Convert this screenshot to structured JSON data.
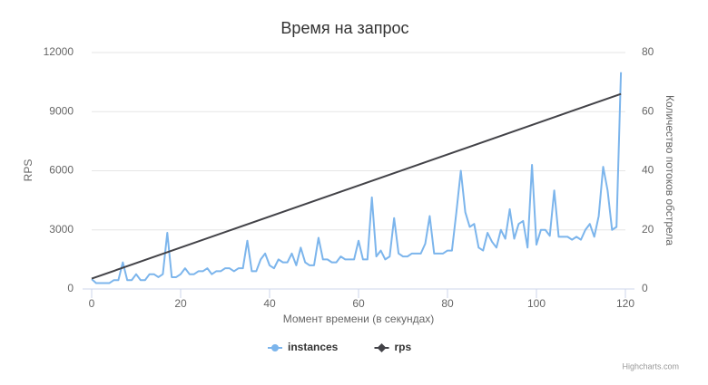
{
  "chart_data": {
    "type": "line",
    "title": "Время на запрос",
    "x_label": "Момент времени (в секундах)",
    "y_label": "RPS",
    "y2_label": "Количество потоков обстрела",
    "credits": "Highcharts.com",
    "legend": "bottom",
    "grid": true,
    "xlim": [
      0,
      120
    ],
    "xticks": [
      0,
      20,
      40,
      60,
      80,
      100,
      120
    ],
    "ylim": [
      0,
      12000
    ],
    "yticks": [
      0,
      3000,
      6000,
      9000,
      12000
    ],
    "y2lim": [
      0,
      80
    ],
    "y2ticks": [
      0,
      20,
      40,
      60,
      80
    ],
    "x": [
      0,
      1,
      2,
      3,
      4,
      5,
      6,
      7,
      8,
      9,
      10,
      11,
      12,
      13,
      14,
      15,
      16,
      17,
      18,
      19,
      20,
      21,
      22,
      23,
      24,
      25,
      26,
      27,
      28,
      29,
      30,
      31,
      32,
      33,
      34,
      35,
      36,
      37,
      38,
      39,
      40,
      41,
      42,
      43,
      44,
      45,
      46,
      47,
      48,
      49,
      50,
      51,
      52,
      53,
      54,
      55,
      56,
      57,
      58,
      59,
      60,
      61,
      62,
      63,
      64,
      65,
      66,
      67,
      68,
      69,
      70,
      71,
      72,
      73,
      74,
      75,
      76,
      77,
      78,
      79,
      80,
      81,
      82,
      83,
      84,
      85,
      86,
      87,
      88,
      89,
      90,
      91,
      92,
      93,
      94,
      95,
      96,
      97,
      98,
      99,
      100,
      101,
      102,
      103,
      104,
      105,
      106,
      107,
      108,
      109,
      110,
      111,
      112,
      113,
      114,
      115,
      116,
      117,
      118,
      119
    ],
    "series": [
      {
        "name": "instances",
        "color": "#7cb5ec",
        "marker": "circle",
        "values": [
          500,
          300,
          300,
          300,
          300,
          450,
          450,
          1350,
          450,
          450,
          750,
          450,
          450,
          750,
          750,
          600,
          750,
          2850,
          600,
          600,
          750,
          1050,
          750,
          750,
          900,
          900,
          1050,
          750,
          900,
          900,
          1050,
          1050,
          900,
          1050,
          1050,
          2450,
          900,
          900,
          1500,
          1800,
          1200,
          1050,
          1500,
          1350,
          1350,
          1800,
          1200,
          2100,
          1350,
          1200,
          1200,
          2600,
          1500,
          1500,
          1350,
          1350,
          1650,
          1500,
          1500,
          1500,
          2450,
          1500,
          1500,
          4650,
          1650,
          1950,
          1500,
          1650,
          3600,
          1800,
          1650,
          1650,
          1800,
          1800,
          1800,
          2300,
          3700,
          1800,
          1800,
          1800,
          1950,
          1950,
          3900,
          6000,
          3900,
          3150,
          3300,
          2100,
          1950,
          2850,
          2400,
          2100,
          3000,
          2550,
          4050,
          2550,
          3300,
          3450,
          2100,
          6300,
          2250,
          3000,
          3000,
          2700,
          5000,
          2650,
          2650,
          2650,
          2500,
          2650,
          2500,
          3000,
          3300,
          2650,
          3700,
          6200,
          5000,
          3000,
          3150,
          11000
        ]
      },
      {
        "name": "rps",
        "color": "#434348",
        "marker": "diamond",
        "axis": "y2",
        "x": [
          0,
          119
        ],
        "values": [
          3.5,
          66
        ]
      }
    ]
  }
}
